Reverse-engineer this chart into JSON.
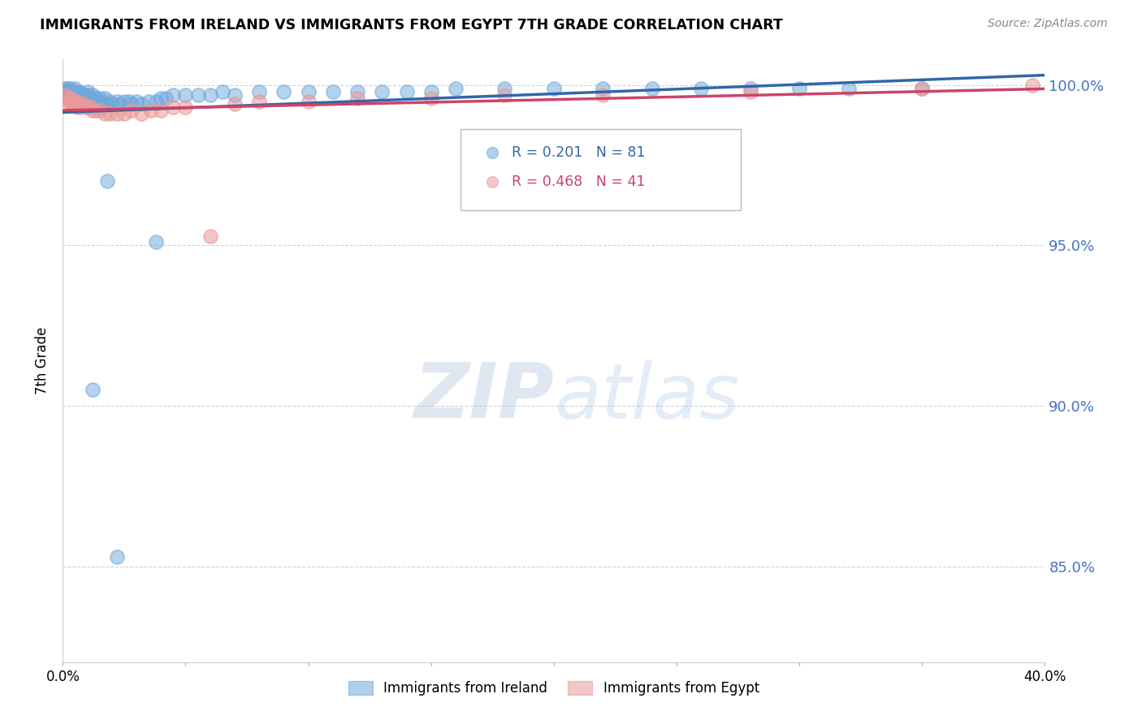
{
  "title": "IMMIGRANTS FROM IRELAND VS IMMIGRANTS FROM EGYPT 7TH GRADE CORRELATION CHART",
  "source": "Source: ZipAtlas.com",
  "ylabel": "7th Grade",
  "xlim": [
    0.0,
    0.4
  ],
  "ylim": [
    0.82,
    1.008
  ],
  "yticks": [
    0.85,
    0.9,
    0.95,
    1.0
  ],
  "ytick_labels": [
    "85.0%",
    "90.0%",
    "95.0%",
    "100.0%"
  ],
  "xticks": [
    0.0,
    0.05,
    0.1,
    0.15,
    0.2,
    0.25,
    0.3,
    0.35,
    0.4
  ],
  "xtick_labels": [
    "0.0%",
    "",
    "",
    "",
    "",
    "",
    "",
    "",
    "40.0%"
  ],
  "ireland_color": "#6fa8dc",
  "egypt_color": "#ea9999",
  "ireland_R": 0.201,
  "ireland_N": 81,
  "egypt_R": 0.468,
  "egypt_N": 41,
  "ireland_line_color": "#3366aa",
  "egypt_line_color": "#cc4466",
  "legend_label_ireland": "Immigrants from Ireland",
  "legend_label_egypt": "Immigrants from Egypt",
  "watermark_zip": "ZIP",
  "watermark_atlas": "atlas",
  "ireland_x": [
    0.001,
    0.001,
    0.001,
    0.002,
    0.002,
    0.002,
    0.002,
    0.003,
    0.003,
    0.003,
    0.003,
    0.004,
    0.004,
    0.004,
    0.005,
    0.005,
    0.005,
    0.005,
    0.006,
    0.006,
    0.006,
    0.007,
    0.007,
    0.007,
    0.008,
    0.008,
    0.009,
    0.009,
    0.01,
    0.01,
    0.01,
    0.011,
    0.012,
    0.012,
    0.013,
    0.014,
    0.015,
    0.016,
    0.017,
    0.018,
    0.019,
    0.02,
    0.022,
    0.023,
    0.025,
    0.027,
    0.028,
    0.03,
    0.032,
    0.035,
    0.038,
    0.04,
    0.042,
    0.045,
    0.05,
    0.055,
    0.06,
    0.065,
    0.07,
    0.08,
    0.09,
    0.1,
    0.11,
    0.12,
    0.13,
    0.14,
    0.15,
    0.16,
    0.18,
    0.2,
    0.22,
    0.24,
    0.26,
    0.28,
    0.3,
    0.32,
    0.35,
    0.038,
    0.012,
    0.018,
    0.022
  ],
  "ireland_y": [
    0.999,
    0.998,
    0.997,
    0.999,
    0.998,
    0.997,
    0.996,
    0.999,
    0.998,
    0.997,
    0.996,
    0.998,
    0.997,
    0.996,
    0.999,
    0.998,
    0.997,
    0.996,
    0.998,
    0.997,
    0.996,
    0.998,
    0.997,
    0.995,
    0.997,
    0.996,
    0.997,
    0.995,
    0.998,
    0.997,
    0.995,
    0.996,
    0.997,
    0.995,
    0.996,
    0.995,
    0.996,
    0.995,
    0.996,
    0.994,
    0.995,
    0.994,
    0.995,
    0.994,
    0.995,
    0.995,
    0.994,
    0.995,
    0.994,
    0.995,
    0.995,
    0.996,
    0.996,
    0.997,
    0.997,
    0.997,
    0.997,
    0.998,
    0.997,
    0.998,
    0.998,
    0.998,
    0.998,
    0.998,
    0.998,
    0.998,
    0.998,
    0.999,
    0.999,
    0.999,
    0.999,
    0.999,
    0.999,
    0.999,
    0.999,
    0.999,
    0.999,
    0.951,
    0.905,
    0.97,
    0.853
  ],
  "egypt_x": [
    0.001,
    0.002,
    0.002,
    0.003,
    0.003,
    0.004,
    0.004,
    0.005,
    0.005,
    0.006,
    0.006,
    0.007,
    0.007,
    0.008,
    0.009,
    0.01,
    0.011,
    0.012,
    0.013,
    0.015,
    0.017,
    0.019,
    0.022,
    0.025,
    0.028,
    0.032,
    0.036,
    0.04,
    0.045,
    0.05,
    0.06,
    0.07,
    0.08,
    0.1,
    0.12,
    0.15,
    0.18,
    0.22,
    0.28,
    0.35,
    0.395
  ],
  "egypt_y": [
    0.997,
    0.996,
    0.995,
    0.996,
    0.995,
    0.995,
    0.994,
    0.995,
    0.994,
    0.995,
    0.993,
    0.994,
    0.993,
    0.994,
    0.993,
    0.993,
    0.993,
    0.992,
    0.992,
    0.992,
    0.991,
    0.991,
    0.991,
    0.991,
    0.992,
    0.991,
    0.992,
    0.992,
    0.993,
    0.993,
    0.953,
    0.994,
    0.995,
    0.995,
    0.996,
    0.996,
    0.997,
    0.997,
    0.998,
    0.999,
    1.0
  ]
}
